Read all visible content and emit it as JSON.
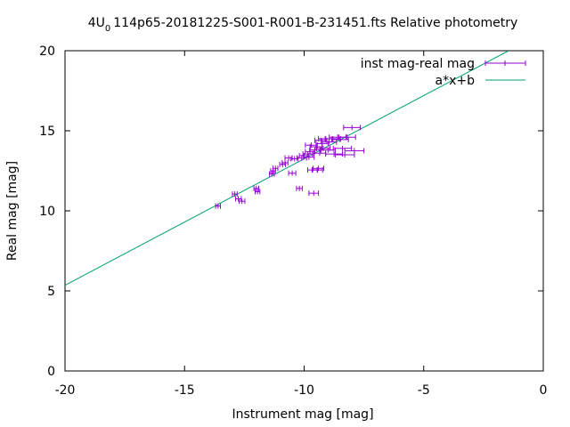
{
  "chart_data": {
    "type": "scatter",
    "title_prefix": "4U",
    "title_subscript": "0",
    "title_rest": "114p65-20181225-S001-R001-B-231451.fts Relative photometry",
    "xlabel": "Instrument mag [mag]",
    "ylabel": "Real mag [mag]",
    "xlim": [
      -20,
      0
    ],
    "ylim": [
      0,
      20
    ],
    "xticks": [
      -20,
      -15,
      -10,
      -5,
      0
    ],
    "yticks": [
      0,
      5,
      10,
      15,
      20
    ],
    "grid": false,
    "legend_position": "top-right",
    "series": [
      {
        "name": "inst mag-real mag",
        "kind": "points_with_xerror",
        "color": "#9400d3",
        "points": [
          [
            -13.6,
            10.3,
            0.1
          ],
          [
            -12.9,
            11.05,
            0.1
          ],
          [
            -12.75,
            10.75,
            0.12
          ],
          [
            -12.6,
            10.6,
            0.12
          ],
          [
            -12.0,
            11.4,
            0.1
          ],
          [
            -11.95,
            11.2,
            0.1
          ],
          [
            -11.35,
            12.3,
            0.1
          ],
          [
            -11.3,
            12.5,
            0.1
          ],
          [
            -11.2,
            12.65,
            0.1
          ],
          [
            -10.9,
            12.9,
            0.12
          ],
          [
            -10.8,
            13.0,
            0.12
          ],
          [
            -10.65,
            13.3,
            0.15
          ],
          [
            -10.5,
            12.35,
            0.15
          ],
          [
            -10.4,
            13.25,
            0.15
          ],
          [
            -10.2,
            11.4,
            0.12
          ],
          [
            -10.1,
            13.3,
            0.2
          ],
          [
            -10.0,
            13.45,
            0.2
          ],
          [
            -9.85,
            13.55,
            0.2
          ],
          [
            -9.8,
            13.35,
            0.22
          ],
          [
            -9.75,
            13.7,
            0.2
          ],
          [
            -9.7,
            14.1,
            0.25
          ],
          [
            -9.65,
            12.55,
            0.2
          ],
          [
            -9.6,
            11.1,
            0.2
          ],
          [
            -9.55,
            13.8,
            0.22
          ],
          [
            -9.5,
            14.0,
            0.25
          ],
          [
            -9.45,
            12.55,
            0.22
          ],
          [
            -9.4,
            12.65,
            0.22
          ],
          [
            -9.35,
            13.6,
            0.25
          ],
          [
            -9.3,
            14.4,
            0.25
          ],
          [
            -9.25,
            14.2,
            0.25
          ],
          [
            -9.2,
            13.9,
            0.28
          ],
          [
            -9.1,
            14.5,
            0.3
          ],
          [
            -9.0,
            13.8,
            0.3
          ],
          [
            -8.95,
            14.3,
            0.3
          ],
          [
            -8.8,
            14.5,
            0.32
          ],
          [
            -8.75,
            13.55,
            0.35
          ],
          [
            -8.6,
            14.6,
            0.35
          ],
          [
            -8.5,
            14.45,
            0.35
          ],
          [
            -8.4,
            13.9,
            0.38
          ],
          [
            -8.3,
            13.5,
            0.4
          ],
          [
            -8.2,
            14.6,
            0.35
          ],
          [
            -8.0,
            15.2,
            0.35
          ],
          [
            -7.9,
            13.75,
            0.4
          ]
        ]
      },
      {
        "name": "a*x+b",
        "kind": "line",
        "color": "#009e73",
        "points": [
          [
            -20,
            5.35
          ],
          [
            -1.45,
            20
          ]
        ]
      }
    ]
  }
}
